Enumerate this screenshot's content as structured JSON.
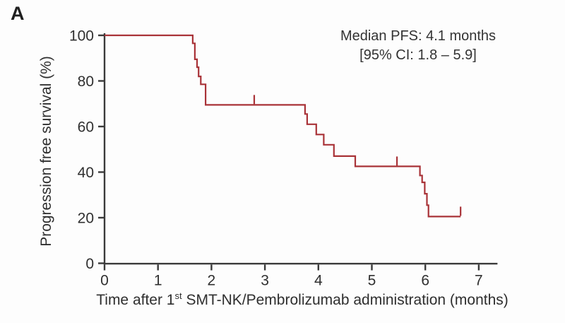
{
  "figure": {
    "panel_label": "A"
  },
  "chart_data": {
    "type": "line",
    "chart_kind": "kaplan-meier-step-curve",
    "title": "",
    "ylabel": "Progression free survival (%)",
    "xlabel_parts": {
      "prefix": "Time after 1",
      "superscript": "st",
      "suffix": " SMT-NK/Pembrolizumab administration (months)"
    },
    "annotation": {
      "line1": "Median PFS: 4.1 months",
      "line2": "[95% CI: 1.8 – 5.9]"
    },
    "x_ticks": [
      "0",
      "1",
      "2",
      "3",
      "4",
      "5",
      "6",
      "7"
    ],
    "y_ticks": [
      "0",
      "20",
      "40",
      "60",
      "80",
      "100"
    ],
    "xlim": [
      0,
      7.35
    ],
    "ylim": [
      0,
      100
    ],
    "grid": false,
    "legend": null,
    "line_color": "#a93338",
    "axis_color": "#3a3a3a",
    "km_points": [
      [
        0,
        100
      ],
      [
        1.65,
        100
      ],
      [
        1.65,
        96.5
      ],
      [
        1.69,
        96.5
      ],
      [
        1.69,
        89.5
      ],
      [
        1.73,
        89.5
      ],
      [
        1.73,
        86
      ],
      [
        1.76,
        86
      ],
      [
        1.76,
        82
      ],
      [
        1.8,
        82
      ],
      [
        1.8,
        78.5
      ],
      [
        1.89,
        78.5
      ],
      [
        1.89,
        69.5
      ],
      [
        3.75,
        69.5
      ],
      [
        3.75,
        65.5
      ],
      [
        3.79,
        65.5
      ],
      [
        3.79,
        61
      ],
      [
        3.96,
        61
      ],
      [
        3.96,
        56.5
      ],
      [
        4.1,
        56.5
      ],
      [
        4.1,
        52
      ],
      [
        4.29,
        52
      ],
      [
        4.29,
        47
      ],
      [
        4.69,
        47
      ],
      [
        4.69,
        42.5
      ],
      [
        5.9,
        42.5
      ],
      [
        5.9,
        38.5
      ],
      [
        5.94,
        38.5
      ],
      [
        5.94,
        35.5
      ],
      [
        5.99,
        35.5
      ],
      [
        5.99,
        30.5
      ],
      [
        6.03,
        30.5
      ],
      [
        6.03,
        25.5
      ],
      [
        6.06,
        25.5
      ],
      [
        6.06,
        20.5
      ],
      [
        6.66,
        20.5
      ]
    ],
    "censor_marks": [
      [
        2.8,
        69.5
      ],
      [
        5.47,
        42.5
      ],
      [
        6.66,
        20.5
      ]
    ],
    "median_pfs_months": 4.1,
    "ci_95": "1.8 – 5.9"
  }
}
